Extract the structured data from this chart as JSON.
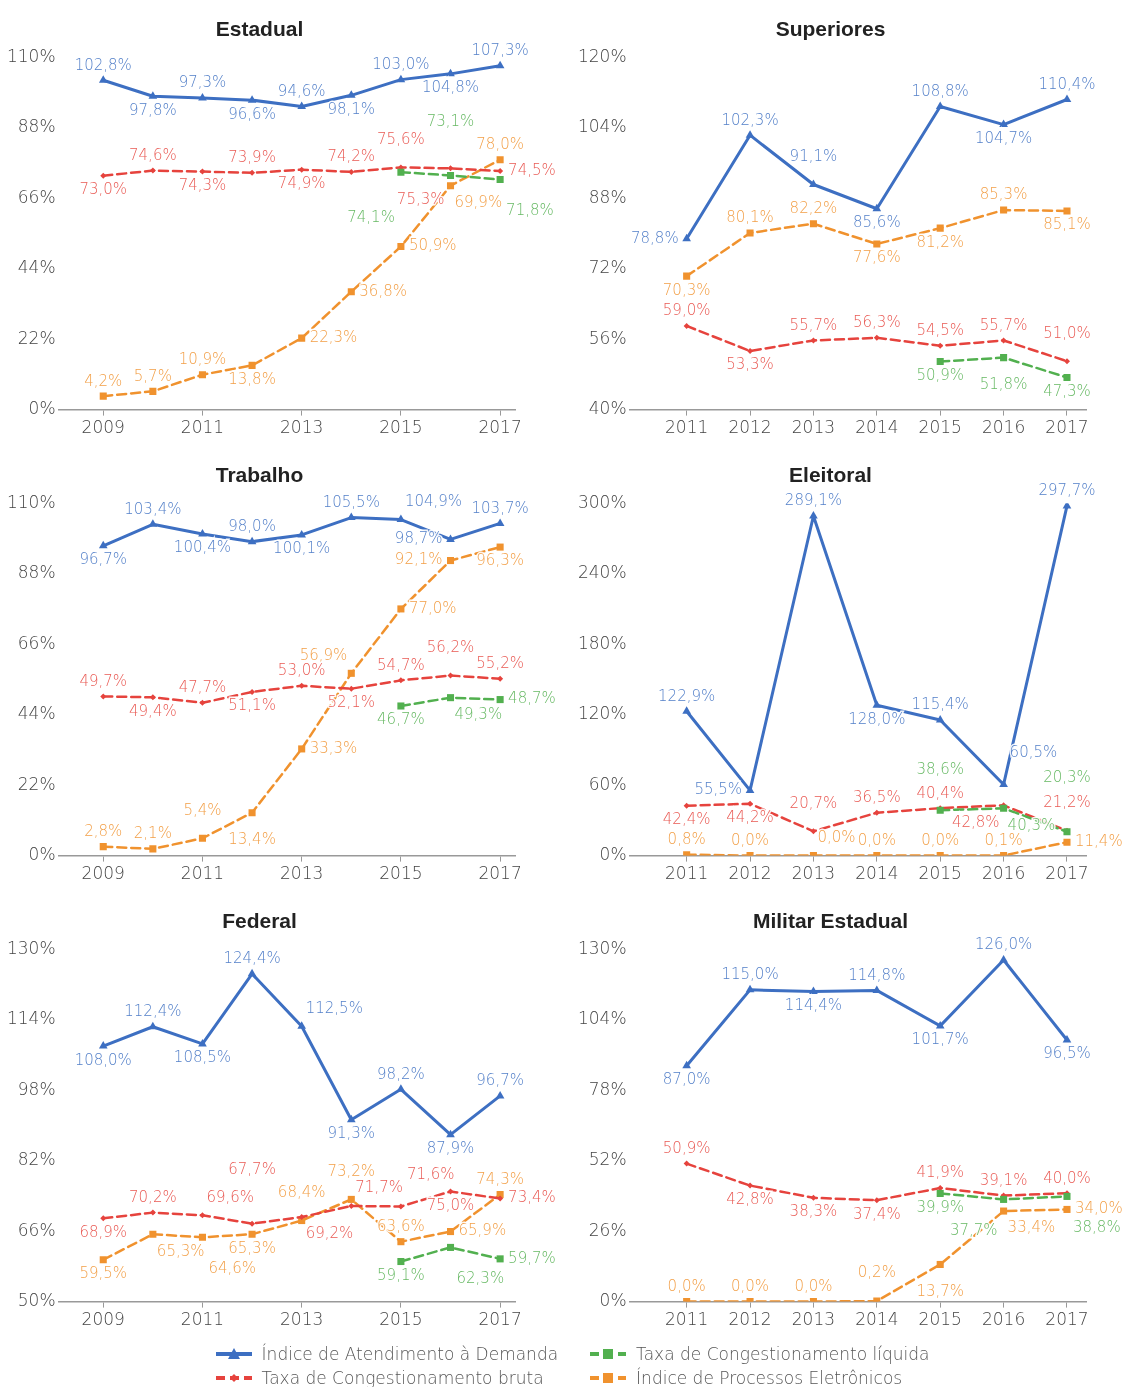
{
  "chart_data": [
    {
      "type": "line",
      "title": "Estadual",
      "x": [
        2009,
        2010,
        2011,
        2012,
        2013,
        2014,
        2015,
        2016,
        2017
      ],
      "xlim": [
        2008.1,
        2017.3
      ],
      "xticks": [
        2009,
        2011,
        2013,
        2015,
        2017
      ],
      "ylim": [
        0,
        110
      ],
      "yticks": [
        {
          "value": 0,
          "label": "0%"
        },
        {
          "value": 22,
          "label": "22%"
        },
        {
          "value": 44,
          "label": "44%"
        },
        {
          "value": 66,
          "label": "66%"
        },
        {
          "value": 88,
          "label": "88%"
        },
        {
          "value": 110,
          "label": "110%"
        }
      ],
      "legend": "bottom",
      "series": [
        {
          "name": "Índice de Atendimento à Demanda",
          "color": "#3d6fc2",
          "marker": "triangle",
          "line_style": "solid",
          "values": [
            102.8,
            97.8,
            97.3,
            96.6,
            94.6,
            98.1,
            103.0,
            104.8,
            107.3
          ],
          "value_labels": [
            "102,8%",
            "97,8%",
            "97,3%",
            "96,6%",
            "94,6%",
            "98,1%",
            "103,0%",
            "104,8%",
            "107,3%"
          ]
        },
        {
          "name": "Taxa de Congestionamento líquida",
          "color": "#52b04f",
          "marker": "square",
          "line_style": "dashed",
          "values": [
            null,
            null,
            null,
            null,
            null,
            null,
            74.1,
            73.1,
            71.8
          ],
          "value_labels": [
            null,
            null,
            null,
            null,
            null,
            null,
            "74,1%",
            "73,1%",
            "71,8%"
          ]
        },
        {
          "name": "Taxa de Congestionamento bruta",
          "color": "#e6433d",
          "marker": "diamond",
          "line_style": "dashed",
          "values": [
            73.0,
            74.6,
            74.3,
            73.9,
            74.9,
            74.2,
            75.6,
            75.3,
            74.5
          ],
          "value_labels": [
            "73,0%",
            "74,6%",
            "74,3%",
            "73,9%",
            "74,9%",
            "74,2%",
            "75,6%",
            "75,3%",
            "74,5%"
          ]
        },
        {
          "name": "Índice de Processos Eletrônicos",
          "color": "#f0922e",
          "marker": "square",
          "line_style": "dashed",
          "values": [
            4.2,
            5.7,
            10.9,
            13.8,
            22.3,
            36.8,
            50.9,
            69.9,
            78.0
          ],
          "value_labels": [
            "4,2%",
            "5,7%",
            "10,9%",
            "13,8%",
            "22,3%",
            "36,8%",
            "50,9%",
            "69,9%",
            "78,0%"
          ]
        }
      ]
    },
    {
      "type": "line",
      "title": "Superiores",
      "x": [
        2011,
        2012,
        2013,
        2014,
        2015,
        2016,
        2017
      ],
      "xlim": [
        2010.1,
        2017.3
      ],
      "xticks": [
        2011,
        2012,
        2013,
        2014,
        2015,
        2016,
        2017
      ],
      "ylim": [
        40,
        120
      ],
      "yticks": [
        {
          "value": 40,
          "label": "40%"
        },
        {
          "value": 56,
          "label": "56%"
        },
        {
          "value": 72,
          "label": "72%"
        },
        {
          "value": 88,
          "label": "88%"
        },
        {
          "value": 104,
          "label": "104%"
        },
        {
          "value": 120,
          "label": "120%"
        }
      ],
      "legend": "bottom",
      "series": [
        {
          "name": "Índice de Atendimento à Demanda",
          "color": "#3d6fc2",
          "marker": "triangle",
          "line_style": "solid",
          "values": [
            78.8,
            102.3,
            91.1,
            85.6,
            108.8,
            104.7,
            110.4
          ],
          "value_labels": [
            "78,8%",
            "102,3%",
            "91,1%",
            "85,6%",
            "108,8%",
            "104,7%",
            "110,4%"
          ]
        },
        {
          "name": "Taxa de Congestionamento líquida",
          "color": "#52b04f",
          "marker": "square",
          "line_style": "dashed",
          "values": [
            null,
            null,
            null,
            null,
            50.9,
            51.8,
            47.3
          ],
          "value_labels": [
            null,
            null,
            null,
            null,
            "50,9%",
            "51,8%",
            "47,3%"
          ]
        },
        {
          "name": "Taxa de Congestionamento bruta",
          "color": "#e6433d",
          "marker": "diamond",
          "line_style": "dashed",
          "values": [
            59.0,
            53.3,
            55.7,
            56.3,
            54.5,
            55.7,
            51.0
          ],
          "value_labels": [
            "59,0%",
            "53,3%",
            "55,7%",
            "56,3%",
            "54,5%",
            "55,7%",
            "51,0%"
          ]
        },
        {
          "name": "Índice de Processos Eletrônicos",
          "color": "#f0922e",
          "marker": "square",
          "line_style": "dashed",
          "values": [
            70.3,
            80.1,
            82.2,
            77.6,
            81.2,
            85.3,
            85.1
          ],
          "value_labels": [
            "70,3%",
            "80,1%",
            "82,2%",
            "77,6%",
            "81,2%",
            "85,3%",
            "85,1%"
          ]
        }
      ]
    },
    {
      "type": "line",
      "title": "Trabalho",
      "x": [
        2009,
        2010,
        2011,
        2012,
        2013,
        2014,
        2015,
        2016,
        2017
      ],
      "xlim": [
        2008.1,
        2017.3
      ],
      "xticks": [
        2009,
        2011,
        2013,
        2015,
        2017
      ],
      "ylim": [
        0,
        110
      ],
      "yticks": [
        {
          "value": 0,
          "label": "0%"
        },
        {
          "value": 22,
          "label": "22%"
        },
        {
          "value": 44,
          "label": "44%"
        },
        {
          "value": 66,
          "label": "66%"
        },
        {
          "value": 88,
          "label": "88%"
        },
        {
          "value": 110,
          "label": "110%"
        }
      ],
      "legend": "bottom",
      "series": [
        {
          "name": "Índice de Atendimento à Demanda",
          "color": "#3d6fc2",
          "marker": "triangle",
          "line_style": "solid",
          "values": [
            96.7,
            103.4,
            100.4,
            98.0,
            100.1,
            105.5,
            104.9,
            98.7,
            103.7
          ],
          "value_labels": [
            "96,7%",
            "103,4%",
            "100,4%",
            "98,0%",
            "100,1%",
            "105,5%",
            "104,9%",
            "98,7%",
            "103,7%"
          ]
        },
        {
          "name": "Taxa de Congestionamento líquida",
          "color": "#52b04f",
          "marker": "square",
          "line_style": "dashed",
          "values": [
            null,
            null,
            null,
            null,
            null,
            null,
            46.7,
            49.3,
            48.7
          ],
          "value_labels": [
            null,
            null,
            null,
            null,
            null,
            null,
            "46,7%",
            "49,3%",
            "48,7%"
          ]
        },
        {
          "name": "Taxa de Congestionamento bruta",
          "color": "#e6433d",
          "marker": "diamond",
          "line_style": "dashed",
          "values": [
            49.7,
            49.4,
            47.7,
            51.1,
            53.0,
            52.1,
            54.7,
            56.2,
            55.2
          ],
          "value_labels": [
            "49,7%",
            "49,4%",
            "47,7%",
            "51,1%",
            "53,0%",
            "52,1%",
            "54,7%",
            "56,2%",
            "55,2%"
          ]
        },
        {
          "name": "Índice de Processos Eletrônicos",
          "color": "#f0922e",
          "marker": "square",
          "line_style": "dashed",
          "values": [
            2.8,
            2.1,
            5.4,
            13.4,
            33.3,
            56.9,
            77.0,
            92.1,
            96.3
          ],
          "value_labels": [
            "2,8%",
            "2,1%",
            "5,4%",
            "13,4%",
            "33,3%",
            "56,9%",
            "77,0%",
            "92,1%",
            "96,3%"
          ]
        }
      ]
    },
    {
      "type": "line",
      "title": "Eleitoral",
      "x": [
        2011,
        2012,
        2013,
        2014,
        2015,
        2016,
        2017
      ],
      "xlim": [
        2010.1,
        2017.3
      ],
      "xticks": [
        2011,
        2012,
        2013,
        2014,
        2015,
        2016,
        2017
      ],
      "ylim": [
        0,
        300
      ],
      "yticks": [
        {
          "value": 0,
          "label": "0%"
        },
        {
          "value": 60,
          "label": "60%"
        },
        {
          "value": 120,
          "label": "120%"
        },
        {
          "value": 180,
          "label": "180%"
        },
        {
          "value": 240,
          "label": "240%"
        },
        {
          "value": 300,
          "label": "300%"
        }
      ],
      "legend": "bottom",
      "series": [
        {
          "name": "Índice de Atendimento à Demanda",
          "color": "#3d6fc2",
          "marker": "triangle",
          "line_style": "solid",
          "values": [
            122.9,
            55.5,
            289.1,
            128.0,
            115.4,
            60.5,
            297.7
          ],
          "value_labels": [
            "122,9%",
            "55,5%",
            "289,1%",
            "128,0%",
            "115,4%",
            "60,5%",
            "297,7%"
          ]
        },
        {
          "name": "Taxa de Congestionamento líquida",
          "color": "#52b04f",
          "marker": "square",
          "line_style": "dashed",
          "values": [
            null,
            null,
            null,
            null,
            38.6,
            40.3,
            20.3
          ],
          "value_labels": [
            null,
            null,
            null,
            null,
            "38,6%",
            "40,3%",
            "20,3%"
          ]
        },
        {
          "name": "Taxa de Congestionamento bruta",
          "color": "#e6433d",
          "marker": "diamond",
          "line_style": "dashed",
          "values": [
            42.4,
            44.2,
            20.7,
            36.5,
            40.4,
            42.8,
            21.2
          ],
          "value_labels": [
            "42,4%",
            "44,2%",
            "20,7%",
            "36,5%",
            "40,4%",
            "42,8%",
            "21,2%"
          ]
        },
        {
          "name": "Índice de Processos Eletrônicos",
          "color": "#f0922e",
          "marker": "square",
          "line_style": "dashed",
          "values": [
            0.8,
            0.0,
            0.0,
            0.0,
            0.0,
            0.1,
            11.4
          ],
          "value_labels": [
            "0,8%",
            "0,0%",
            "0,0%",
            "0,0%",
            "0,0%",
            "0,1%",
            "11,4%"
          ]
        }
      ]
    },
    {
      "type": "line",
      "title": "Federal",
      "x": [
        2009,
        2010,
        2011,
        2012,
        2013,
        2014,
        2015,
        2016,
        2017
      ],
      "xlim": [
        2008.1,
        2017.3
      ],
      "xticks": [
        2009,
        2011,
        2013,
        2015,
        2017
      ],
      "ylim": [
        50,
        130
      ],
      "yticks": [
        {
          "value": 50,
          "label": "50%"
        },
        {
          "value": 66,
          "label": "66%"
        },
        {
          "value": 82,
          "label": "82%"
        },
        {
          "value": 98,
          "label": "98%"
        },
        {
          "value": 114,
          "label": "114%"
        },
        {
          "value": 130,
          "label": "130%"
        }
      ],
      "legend": "bottom",
      "series": [
        {
          "name": "Índice de Atendimento à Demanda",
          "color": "#3d6fc2",
          "marker": "triangle",
          "line_style": "solid",
          "values": [
            108.0,
            112.4,
            108.5,
            124.4,
            112.5,
            91.3,
            98.2,
            87.9,
            96.7
          ],
          "value_labels": [
            "108,0%",
            "112,4%",
            "108,5%",
            "124,4%",
            "112,5%",
            "91,3%",
            "98,2%",
            "87,9%",
            "96,7%"
          ]
        },
        {
          "name": "Taxa de Congestionamento líquida",
          "color": "#52b04f",
          "marker": "square",
          "line_style": "dashed",
          "values": [
            null,
            null,
            null,
            null,
            null,
            null,
            59.1,
            62.3,
            59.7
          ],
          "value_labels": [
            null,
            null,
            null,
            null,
            null,
            null,
            "59,1%",
            "62,3%",
            "59,7%"
          ]
        },
        {
          "name": "Taxa de Congestionamento bruta",
          "color": "#e6433d",
          "marker": "diamond",
          "line_style": "dashed",
          "values": [
            68.9,
            70.2,
            69.6,
            67.7,
            69.2,
            71.7,
            71.6,
            75.0,
            73.4
          ],
          "value_labels": [
            "68,9%",
            "70,2%",
            "69,6%",
            "67,7%",
            "69,2%",
            "71,7%",
            "71,6%",
            "75,0%",
            "73,4%"
          ]
        },
        {
          "name": "Índice de Processos Eletrônicos",
          "color": "#f0922e",
          "marker": "square",
          "line_style": "dashed",
          "values": [
            59.5,
            65.3,
            64.6,
            65.3,
            68.4,
            73.2,
            63.6,
            65.9,
            74.3
          ],
          "value_labels": [
            "59,5%",
            "65,3%",
            "64,6%",
            "65,3%",
            "68,4%",
            "73,2%",
            "63,6%",
            "65,9%",
            "74,3%"
          ]
        }
      ]
    },
    {
      "type": "line",
      "title": "Militar Estadual",
      "x": [
        2011,
        2012,
        2013,
        2014,
        2015,
        2016,
        2017
      ],
      "xlim": [
        2010.1,
        2017.3
      ],
      "xticks": [
        2011,
        2012,
        2013,
        2014,
        2015,
        2016,
        2017
      ],
      "ylim": [
        0,
        130
      ],
      "yticks": [
        {
          "value": 0,
          "label": "0%"
        },
        {
          "value": 26,
          "label": "26%"
        },
        {
          "value": 52,
          "label": "52%"
        },
        {
          "value": 78,
          "label": "78%"
        },
        {
          "value": 104,
          "label": "104%"
        },
        {
          "value": 130,
          "label": "130%"
        }
      ],
      "legend": "bottom",
      "series": [
        {
          "name": "Índice de Atendimento à Demanda",
          "color": "#3d6fc2",
          "marker": "triangle",
          "line_style": "solid",
          "values": [
            87.0,
            115.0,
            114.4,
            114.8,
            101.7,
            126.0,
            96.5
          ],
          "value_labels": [
            "87,0%",
            "115,0%",
            "114,4%",
            "114,8%",
            "101,7%",
            "126,0%",
            "96,5%"
          ]
        },
        {
          "name": "Taxa de Congestionamento líquida",
          "color": "#52b04f",
          "marker": "square",
          "line_style": "dashed",
          "values": [
            null,
            null,
            null,
            null,
            39.9,
            37.7,
            38.8
          ],
          "value_labels": [
            null,
            null,
            null,
            null,
            "39,9%",
            "37,7%",
            "38,8%"
          ]
        },
        {
          "name": "Taxa de Congestionamento bruta",
          "color": "#e6433d",
          "marker": "diamond",
          "line_style": "dashed",
          "values": [
            50.9,
            42.8,
            38.3,
            37.4,
            41.9,
            39.1,
            40.0
          ],
          "value_labels": [
            "50,9%",
            "42,8%",
            "38,3%",
            "37,4%",
            "41,9%",
            "39,1%",
            "40,0%"
          ]
        },
        {
          "name": "Índice de Processos Eletrônicos",
          "color": "#f0922e",
          "marker": "square",
          "line_style": "dashed",
          "values": [
            0.0,
            0.0,
            0.0,
            0.2,
            13.7,
            33.4,
            34.0
          ],
          "value_labels": [
            "0,0%",
            "0,0%",
            "0,0%",
            "0,2%",
            "13,7%",
            "33,4%",
            "34,0%"
          ]
        }
      ]
    }
  ]
}
